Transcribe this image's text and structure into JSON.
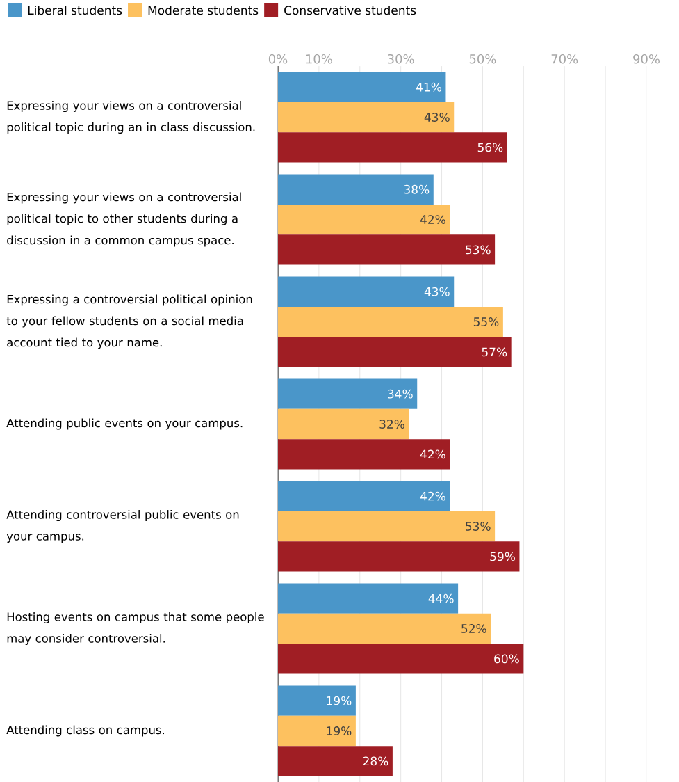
{
  "chart_data": {
    "type": "bar",
    "orientation": "horizontal",
    "categories": [
      "Expressing your views on a controversial political topic during an in class discussion.",
      "Expressing your views on a controversial political topic to other students during a discussion in a common campus space.",
      "Expressing a controversial political opinion to your fellow students on a social media account tied to your name.",
      "Attending public events on your campus.",
      "Attending controversial public events on your campus.",
      "Hosting events on campus that some people may consider controversial.",
      "Attending class on campus."
    ],
    "series": [
      {
        "name": "Liberal students",
        "color": "#4a96c9",
        "values": [
          41,
          38,
          43,
          34,
          42,
          44,
          19
        ],
        "value_labels": [
          "41%",
          "38%",
          "43%",
          "34%",
          "42%",
          "44%",
          "19%"
        ]
      },
      {
        "name": "Moderate students",
        "color": "#fdc15f",
        "values": [
          43,
          42,
          55,
          32,
          53,
          52,
          19
        ],
        "value_labels": [
          "43%",
          "42%",
          "55%",
          "32%",
          "53%",
          "52%",
          "19%"
        ]
      },
      {
        "name": "Conservative students",
        "color": "#a01e24",
        "values": [
          56,
          53,
          57,
          42,
          59,
          60,
          28
        ],
        "value_labels": [
          "56%",
          "53%",
          "57%",
          "42%",
          "59%",
          "60%",
          "28%"
        ]
      }
    ],
    "xlim": [
      0,
      90
    ],
    "xticks": [
      {
        "value": 0,
        "label": "0%"
      },
      {
        "value": 10,
        "label": "10%"
      },
      {
        "value": 20,
        "label": null
      },
      {
        "value": 30,
        "label": "30%"
      },
      {
        "value": 40,
        "label": null
      },
      {
        "value": 50,
        "label": "50%"
      },
      {
        "value": 60,
        "label": null
      },
      {
        "value": 70,
        "label": "70%"
      },
      {
        "value": 80,
        "label": null
      },
      {
        "value": 90,
        "label": "90%"
      }
    ],
    "grid": "x",
    "legend": "top left"
  }
}
